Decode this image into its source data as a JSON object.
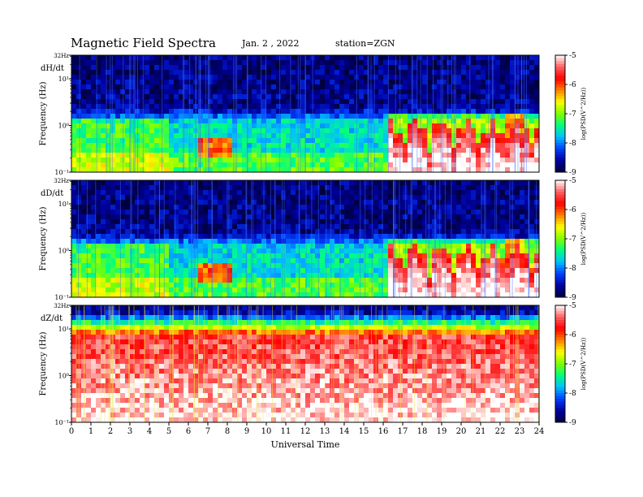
{
  "header": {
    "title": "Magnetic  Field  Spectra",
    "date": "Jan.  2  , 2022",
    "station": "station=ZGN"
  },
  "colors": {
    "colormap": [
      "#000040",
      "#0000a0",
      "#0040ff",
      "#00c0ff",
      "#00ff80",
      "#80ff00",
      "#ffff00",
      "#ff8000",
      "#ff0000",
      "#ff6060",
      "#ffffff"
    ],
    "background": "#ffffff"
  },
  "chart_data": [
    {
      "type": "heatmap",
      "panel_label": "dH/dt",
      "ylabel": "Frequency  (Hz)",
      "ytick_labels": [
        "32Hz",
        "10¹",
        "10⁰",
        "10⁻¹"
      ],
      "yscale": "log",
      "ylim": [
        0.1,
        32
      ],
      "xlim": [
        0,
        24
      ],
      "colorbar": {
        "label": "log(PSD(V^2/Hz))",
        "range": [
          -9,
          -5
        ],
        "tick_labels": [
          "-5",
          "-6",
          "-7",
          "-8",
          "-9"
        ]
      }
    },
    {
      "type": "heatmap",
      "panel_label": "dD/dt",
      "ylabel": "Frequency  (Hz)",
      "ytick_labels": [
        "32Hz",
        "10¹",
        "10⁰",
        "10⁻¹"
      ],
      "yscale": "log",
      "ylim": [
        0.1,
        32
      ],
      "xlim": [
        0,
        24
      ],
      "colorbar": {
        "label": "log(PSD(V^2/Hz))",
        "range": [
          -9,
          -5
        ],
        "tick_labels": [
          "-5",
          "-6",
          "-7",
          "-8",
          "-9"
        ]
      }
    },
    {
      "type": "heatmap",
      "panel_label": "dZ/dt",
      "ylabel": "Frequency  (Hz)",
      "ytick_labels": [
        "32Hz",
        "10¹",
        "10⁰",
        "10⁻¹"
      ],
      "yscale": "log",
      "ylim": [
        0.1,
        32
      ],
      "xlim": [
        0,
        24
      ],
      "xlabel": "Universal  Time",
      "xtick_labels": [
        "0",
        "1",
        "2",
        "3",
        "4",
        "5",
        "6",
        "7",
        "8",
        "9",
        "10",
        "11",
        "12",
        "13",
        "14",
        "15",
        "16",
        "17",
        "18",
        "19",
        "20",
        "21",
        "22",
        "23",
        "24"
      ],
      "colorbar": {
        "label": "log(PSD(V^2/Hz))",
        "range": [
          -9,
          -5
        ],
        "tick_labels": [
          "-5",
          "-6",
          "-7",
          "-8",
          "-9"
        ]
      }
    }
  ]
}
